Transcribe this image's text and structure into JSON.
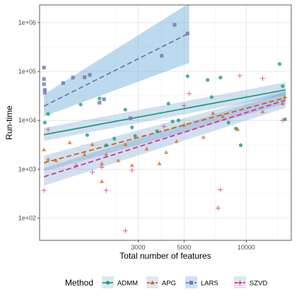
{
  "chart_data": {
    "type": "scatter",
    "xlabel": "Total number of features",
    "ylabel": "Run-time",
    "x_scale": "log",
    "y_scale": "log",
    "xlim": [
      1000,
      16500
    ],
    "ylim": [
      35,
      2300000
    ],
    "x_ticks": [
      3000,
      5000,
      10000
    ],
    "x_tick_labels": [
      "3000",
      "5000",
      "10000"
    ],
    "y_ticks": [
      100,
      1000,
      10000,
      100000,
      1000000
    ],
    "y_tick_labels": [
      "1e+02",
      "1e+03",
      "1e+04",
      "1e+05",
      "1e+06"
    ],
    "grid": true,
    "legend": {
      "title": "Method",
      "position": "bottom",
      "entries": [
        "ADMM",
        "APG",
        "LARS",
        "SZVD"
      ]
    },
    "colors": {
      "ADMM": "#1b9e77",
      "APG": "#d95f02",
      "LARS": "#7570b3",
      "SZVD": "#e7298a"
    },
    "series": [
      {
        "name": "ADMM",
        "marker": "circle",
        "line": "solid",
        "fit_x": [
          1050,
          15500
        ],
        "fit_y": [
          5100,
          42000
        ],
        "band_low": [
          3800,
          33000
        ],
        "band_high": [
          7000,
          60000
        ],
        "points": [
          [
            1060,
            9000
          ],
          [
            1100,
            13500
          ],
          [
            1580,
            21000
          ],
          [
            1700,
            5000
          ],
          [
            1950,
            28000
          ],
          [
            2100,
            3100
          ],
          [
            2300,
            4200
          ],
          [
            2600,
            16500
          ],
          [
            2800,
            7200
          ],
          [
            3700,
            6000
          ],
          [
            4200,
            22000
          ],
          [
            4400,
            9500
          ],
          [
            5200,
            80000
          ],
          [
            6500,
            67000
          ],
          [
            6800,
            30000
          ],
          [
            7500,
            75000
          ],
          [
            8200,
            9000
          ],
          [
            8900,
            6800
          ],
          [
            9400,
            3100
          ],
          [
            14500,
            142000
          ],
          [
            15000,
            50000
          ],
          [
            15400,
            10500
          ],
          [
            2900,
            4800
          ],
          [
            4700,
            10000
          ]
        ]
      },
      {
        "name": "APG",
        "marker": "triangle",
        "line": "dashed",
        "fit_x": [
          1050,
          15500
        ],
        "fit_y": [
          1350,
          29000
        ],
        "band_low": [
          900,
          22000
        ],
        "band_high": [
          1900,
          40000
        ],
        "points": [
          [
            1050,
            2500
          ],
          [
            1100,
            1600
          ],
          [
            1200,
            1500
          ],
          [
            1400,
            3500
          ],
          [
            1650,
            2000
          ],
          [
            1800,
            3200
          ],
          [
            2000,
            560
          ],
          [
            2000,
            1300
          ],
          [
            2100,
            2000
          ],
          [
            2400,
            1500
          ],
          [
            2600,
            3200
          ],
          [
            2800,
            1200
          ],
          [
            3300,
            2600
          ],
          [
            3800,
            1300
          ],
          [
            4100,
            2200
          ],
          [
            4600,
            3700
          ],
          [
            5000,
            8000
          ],
          [
            6200,
            4500
          ],
          [
            6900,
            14000
          ],
          [
            7700,
            12000
          ],
          [
            9100,
            6500
          ],
          [
            12000,
            15000
          ],
          [
            15000,
            22000
          ],
          [
            15400,
            30000
          ]
        ]
      },
      {
        "name": "LARS",
        "marker": "square",
        "line": "dashed",
        "fit_x": [
          1050,
          5300
        ],
        "fit_y": [
          19500,
          610000
        ],
        "band_low": [
          12000,
          150000
        ],
        "band_high": [
          34000,
          2500000
        ],
        "points": [
          [
            1050,
            120000
          ],
          [
            1050,
            70000
          ],
          [
            1050,
            55000
          ],
          [
            1060,
            42000
          ],
          [
            1060,
            37000
          ],
          [
            1300,
            58000
          ],
          [
            1450,
            75000
          ],
          [
            1650,
            76000
          ],
          [
            1750,
            85000
          ],
          [
            1950,
            23000
          ],
          [
            2050,
            27000
          ],
          [
            2750,
            11000
          ],
          [
            3900,
            210000
          ],
          [
            4500,
            900000
          ],
          [
            5200,
            600000
          ]
        ]
      },
      {
        "name": "SZVD",
        "marker": "plus",
        "line": "dashed",
        "fit_x": [
          1050,
          15500
        ],
        "fit_y": [
          700,
          26000
        ],
        "band_low": [
          460,
          18000
        ],
        "band_high": [
          1050,
          38000
        ],
        "points": [
          [
            1050,
            370
          ],
          [
            1100,
            6500
          ],
          [
            1500,
            1200
          ],
          [
            1800,
            870
          ],
          [
            2000,
            1100
          ],
          [
            2100,
            370
          ],
          [
            2600,
            55
          ],
          [
            2800,
            950
          ],
          [
            4000,
            7500
          ],
          [
            5000,
            20000
          ],
          [
            5300,
            35000
          ],
          [
            7300,
            160
          ],
          [
            7500,
            380
          ],
          [
            9300,
            82000
          ],
          [
            12000,
            72000
          ],
          [
            15000,
            10000
          ]
        ]
      }
    ]
  }
}
